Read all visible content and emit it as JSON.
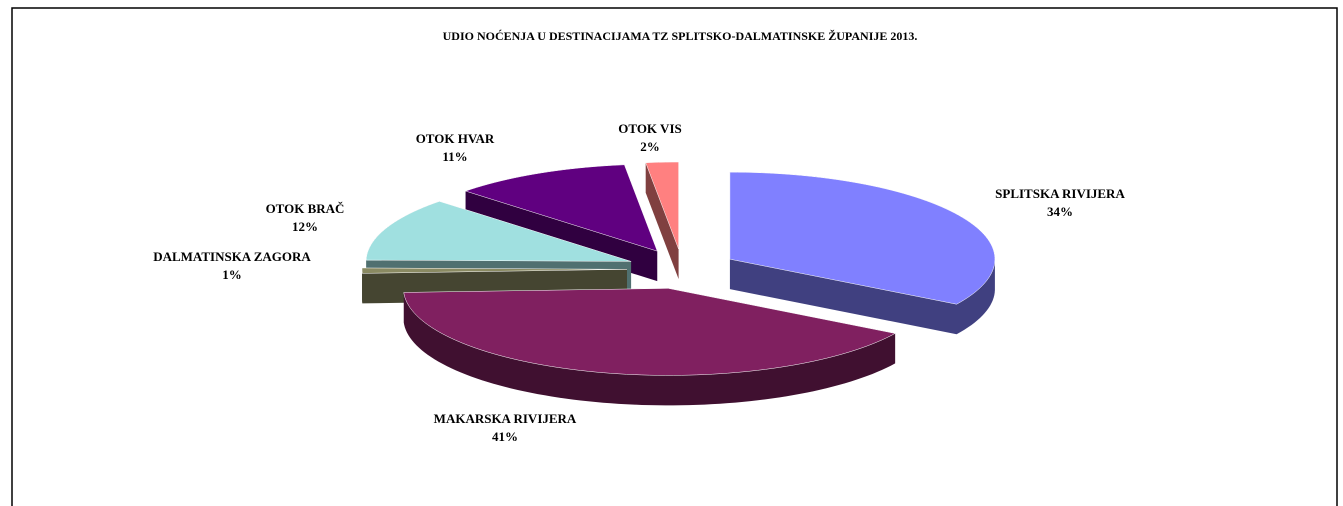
{
  "chart_data": {
    "type": "pie",
    "title": "UDIO NOĆENJA U DESTINACIJAMA TZ SPLITSKO-DALMATINSKE ŽUPANIJE 2013.",
    "categories": [
      "SPLITSKA RIVIJERA",
      "MAKARSKA RIVIJERA",
      "DALMATINSKA ZAGORA",
      "OTOK BRAČ",
      "OTOK HVAR",
      "OTOK VIS"
    ],
    "values": [
      34,
      41,
      1,
      12,
      11,
      2
    ],
    "value_labels": [
      "34%",
      "41%",
      "1%",
      "12%",
      "11%",
      "2%"
    ],
    "colors": [
      "#8080ff",
      "#802060",
      "#8a8a62",
      "#a0e0e0",
      "#600080",
      "#ff8080"
    ]
  }
}
